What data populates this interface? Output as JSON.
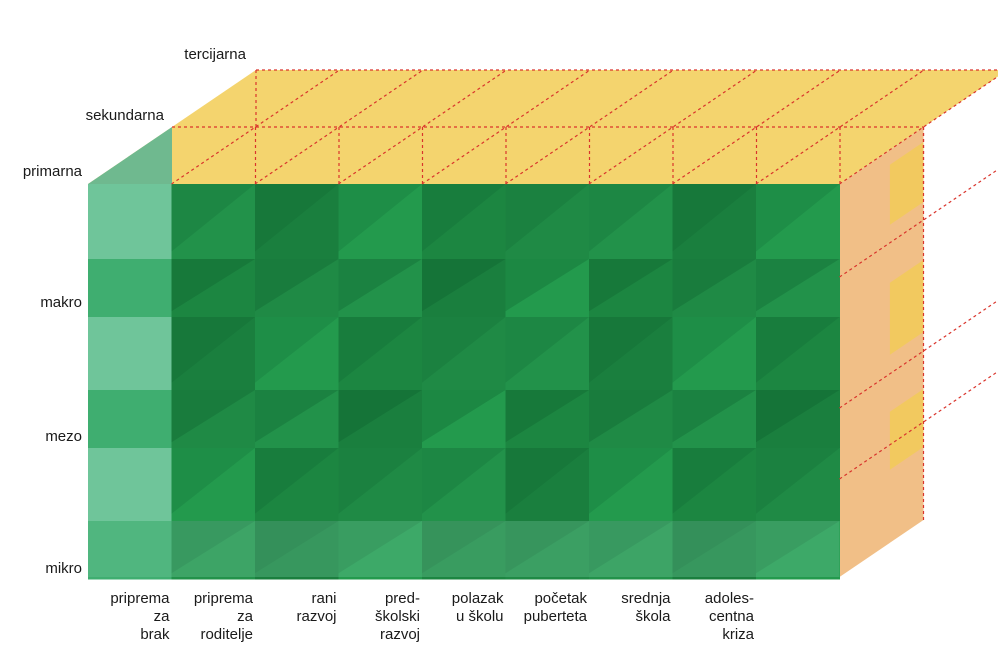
{
  "depth_labels": [
    "primarna",
    "sekundarna",
    "tercijarna"
  ],
  "level_labels": [
    "makro",
    "mezo",
    "mikro"
  ],
  "phase_labels": [
    [
      "priprema",
      "za",
      "brak"
    ],
    [
      "priprema",
      "za",
      "roditelje"
    ],
    [
      "rani",
      "razvoj"
    ],
    [
      "pred-",
      "školski",
      "razvoj"
    ],
    [
      "polazak",
      "u školu"
    ],
    [
      "početak",
      "puberteta"
    ],
    [
      "srednja",
      "škola"
    ],
    [
      "adoles-",
      "centna",
      "kriza"
    ]
  ],
  "colors": {
    "front_light": "#6fc59a",
    "front_dark": "#1e8f45",
    "yellow_side": "#f2cc55",
    "orange_side": "#efb87a",
    "dotted": "#d9342c"
  }
}
